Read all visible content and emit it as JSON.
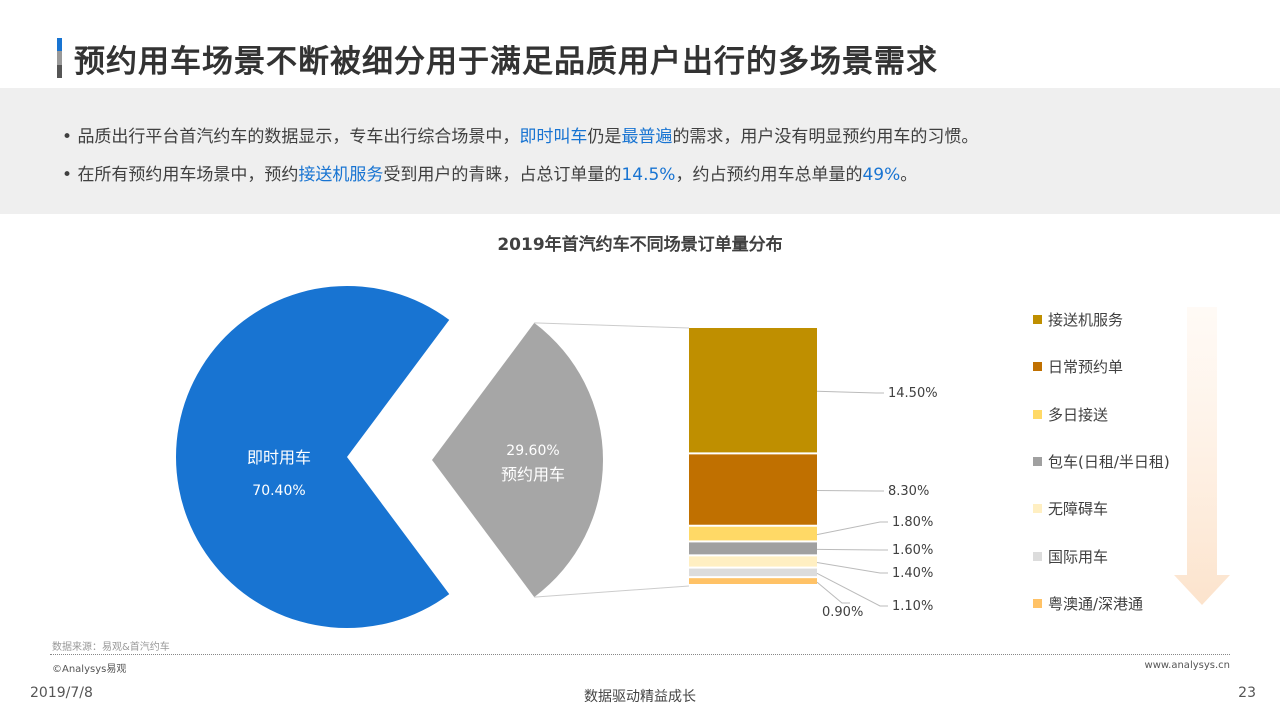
{
  "header": {
    "title": "预约用车场景不断被细分用于满足品质用户出行的多场景需求"
  },
  "bullets": [
    {
      "parts": [
        {
          "t": "品质出行平台首汽约车的数据显示，专车出行综合场景中，"
        },
        {
          "t": "即时叫车",
          "hl": true
        },
        {
          "t": "仍是"
        },
        {
          "t": "最普遍",
          "hl": true
        },
        {
          "t": "的需求，用户没有明显预约用车的习惯。"
        }
      ]
    },
    {
      "parts": [
        {
          "t": "在所有预约用车场景中，预约"
        },
        {
          "t": "接送机服务",
          "hl": true
        },
        {
          "t": "受到用户的青睐，占总订单量的"
        },
        {
          "t": "14.5%",
          "hl": true
        },
        {
          "t": "，约占预约用车总单量的"
        },
        {
          "t": "49%",
          "hl": true
        },
        {
          "t": "。"
        }
      ]
    }
  ],
  "chart_data": {
    "type": "pie",
    "title": "2019年首汽约车不同场景订单量分布",
    "pie": [
      {
        "name": "即时用车",
        "value": 70.4,
        "label": "70.40%",
        "color": "#1874D2"
      },
      {
        "name": "预约用车",
        "value": 29.6,
        "label": "29.60%",
        "color": "#A6A6A6"
      }
    ],
    "breakdown": {
      "type": "stacked-bar",
      "of": "预约用车",
      "series": [
        {
          "name": "接送机服务",
          "value": 14.5,
          "label": "14.50%",
          "color": "#BF8F00"
        },
        {
          "name": "日常预约单",
          "value": 8.3,
          "label": "8.30%",
          "color": "#C07000"
        },
        {
          "name": "多日接送",
          "value": 1.8,
          "label": "1.80%",
          "color": "#FFD966"
        },
        {
          "name": "包车(日租/半日租)",
          "value": 1.6,
          "label": "1.60%",
          "color": "#A0A0A0"
        },
        {
          "name": "无障碍车",
          "value": 1.4,
          "label": "1.40%",
          "color": "#FFEFC2"
        },
        {
          "name": "国际用车",
          "value": 1.1,
          "label": "1.10%",
          "color": "#DCDCDC"
        },
        {
          "name": "粤澳通/深港通",
          "value": 0.9,
          "label": "0.90%",
          "color": "#FFC266"
        }
      ],
      "legend_position": "right"
    }
  },
  "footer": {
    "source": "数据来源：易观&首汽约车",
    "copyright": "©Analysys易观",
    "url": "www.analysys.cn",
    "date": "2019/7/8",
    "slogan": "数据驱动精益成长",
    "page": "23"
  }
}
